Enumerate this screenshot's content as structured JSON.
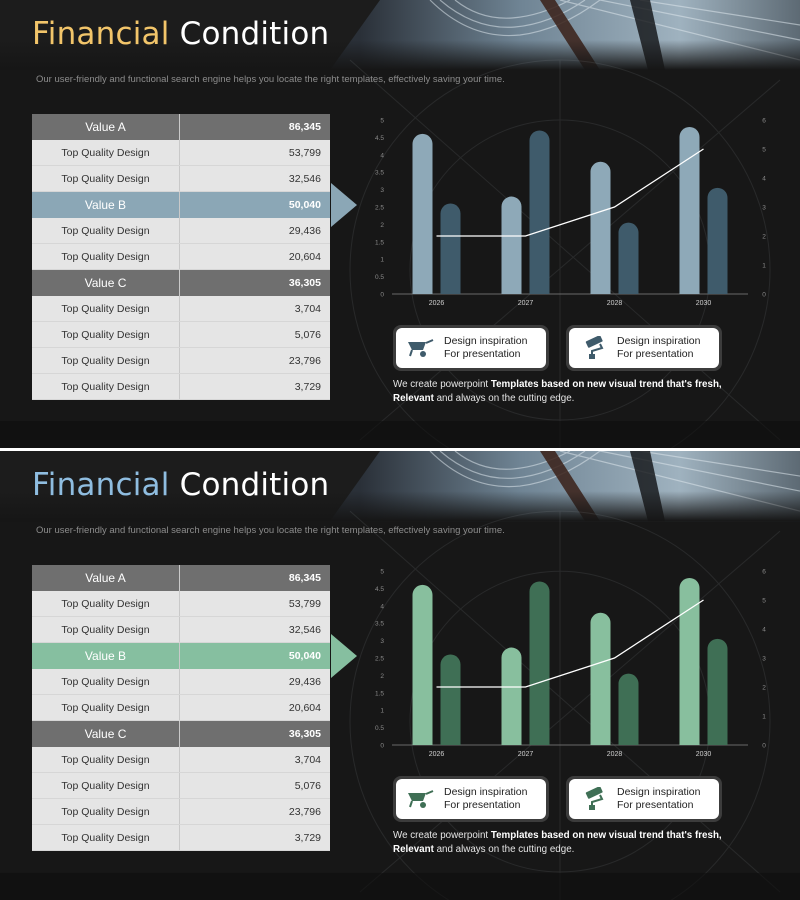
{
  "slides": [
    {
      "title_word1": "Financial",
      "title_word2": "Condition",
      "subtitle": "Our user-friendly and functional search engine helps you locate the right templates, effectively saving your time.",
      "accent": "#f2c56a",
      "highlight": "#8ba7b6",
      "bar_light": "#8ea9b8",
      "bar_dark": "#3f5b6b",
      "table": [
        {
          "label": "Value A",
          "value": "86,345",
          "kind": "gray"
        },
        {
          "label": "Top Quality Design",
          "value": "53,799",
          "kind": "plain"
        },
        {
          "label": "Top Quality Design",
          "value": "32,546",
          "kind": "plain"
        },
        {
          "label": "Value B",
          "value": "50,040",
          "kind": "accent"
        },
        {
          "label": "Top Quality Design",
          "value": "29,436",
          "kind": "plain"
        },
        {
          "label": "Top Quality Design",
          "value": "20,604",
          "kind": "plain"
        },
        {
          "label": "Value C",
          "value": "36,305",
          "kind": "gray"
        },
        {
          "label": "Top Quality Design",
          "value": "3,704",
          "kind": "plain"
        },
        {
          "label": "Top Quality Design",
          "value": "5,076",
          "kind": "plain"
        },
        {
          "label": "Top Quality Design",
          "value": "23,796",
          "kind": "plain"
        },
        {
          "label": "Top Quality Design",
          "value": "3,729",
          "kind": "plain"
        }
      ],
      "cards": [
        {
          "line1": "Design inspiration",
          "line2": "For presentation",
          "icon": "wheelbarrow-icon"
        },
        {
          "line1": "Design inspiration",
          "line2": "For presentation",
          "icon": "paint-roller-icon"
        }
      ],
      "desc_plain1": "We create powerpoint ",
      "desc_bold1": "Templates based on new visual trend that's fresh,",
      "desc_bold2": "Relevant",
      "desc_plain2": " and always on the cutting edge."
    },
    {
      "title_word1": "Financial",
      "title_word2": "Condition",
      "subtitle": "Our user-friendly and functional search engine helps you locate the right templates, effectively saving your time.",
      "accent": "#8fbde0",
      "highlight": "#86bfa0",
      "bar_light": "#88bf9e",
      "bar_dark": "#3f6f55",
      "table": [
        {
          "label": "Value A",
          "value": "86,345",
          "kind": "gray"
        },
        {
          "label": "Top Quality Design",
          "value": "53,799",
          "kind": "plain"
        },
        {
          "label": "Top Quality Design",
          "value": "32,546",
          "kind": "plain"
        },
        {
          "label": "Value B",
          "value": "50,040",
          "kind": "accent"
        },
        {
          "label": "Top Quality Design",
          "value": "29,436",
          "kind": "plain"
        },
        {
          "label": "Top Quality Design",
          "value": "20,604",
          "kind": "plain"
        },
        {
          "label": "Value C",
          "value": "36,305",
          "kind": "gray"
        },
        {
          "label": "Top Quality Design",
          "value": "3,704",
          "kind": "plain"
        },
        {
          "label": "Top Quality Design",
          "value": "5,076",
          "kind": "plain"
        },
        {
          "label": "Top Quality Design",
          "value": "23,796",
          "kind": "plain"
        },
        {
          "label": "Top Quality Design",
          "value": "3,729",
          "kind": "plain"
        }
      ],
      "cards": [
        {
          "line1": "Design inspiration",
          "line2": "For presentation",
          "icon": "wheelbarrow-icon"
        },
        {
          "line1": "Design inspiration",
          "line2": "For presentation",
          "icon": "paint-roller-icon"
        }
      ],
      "desc_plain1": "We create powerpoint ",
      "desc_bold1": "Templates based on new visual trend that's fresh,",
      "desc_bold2": "Relevant",
      "desc_plain2": " and always on the cutting edge."
    }
  ],
  "chart_data": [
    {
      "type": "bar",
      "categories": [
        "2026",
        "2027",
        "2028",
        "2030"
      ],
      "series": [
        {
          "values": [
            4.6,
            2.8,
            3.8,
            4.8
          ]
        },
        {
          "values": [
            2.6,
            4.7,
            2.05,
            3.05
          ]
        }
      ],
      "line": {
        "values": [
          2,
          2,
          3,
          5
        ]
      },
      "ylim": [
        0,
        5
      ],
      "yticks": [
        "0",
        "0.5",
        "1",
        "1.5",
        "2",
        "2.5",
        "3",
        "3.5",
        "4",
        "4.5",
        "5"
      ],
      "y2lim": [
        0,
        6
      ],
      "y2ticks": [
        "0",
        "1",
        "2",
        "3",
        "4",
        "5",
        "6"
      ],
      "grid": false
    },
    {
      "type": "bar",
      "categories": [
        "2026",
        "2027",
        "2028",
        "2030"
      ],
      "series": [
        {
          "values": [
            4.6,
            2.8,
            3.8,
            4.8
          ]
        },
        {
          "values": [
            2.6,
            4.7,
            2.05,
            3.05
          ]
        }
      ],
      "line": {
        "values": [
          2,
          2,
          3,
          5
        ]
      },
      "ylim": [
        0,
        5
      ],
      "yticks": [
        "0",
        "0.5",
        "1",
        "1.5",
        "2",
        "2.5",
        "3",
        "3.5",
        "4",
        "4.5",
        "5"
      ],
      "y2lim": [
        0,
        6
      ],
      "y2ticks": [
        "0",
        "1",
        "2",
        "3",
        "4",
        "5",
        "6"
      ],
      "grid": false
    }
  ]
}
